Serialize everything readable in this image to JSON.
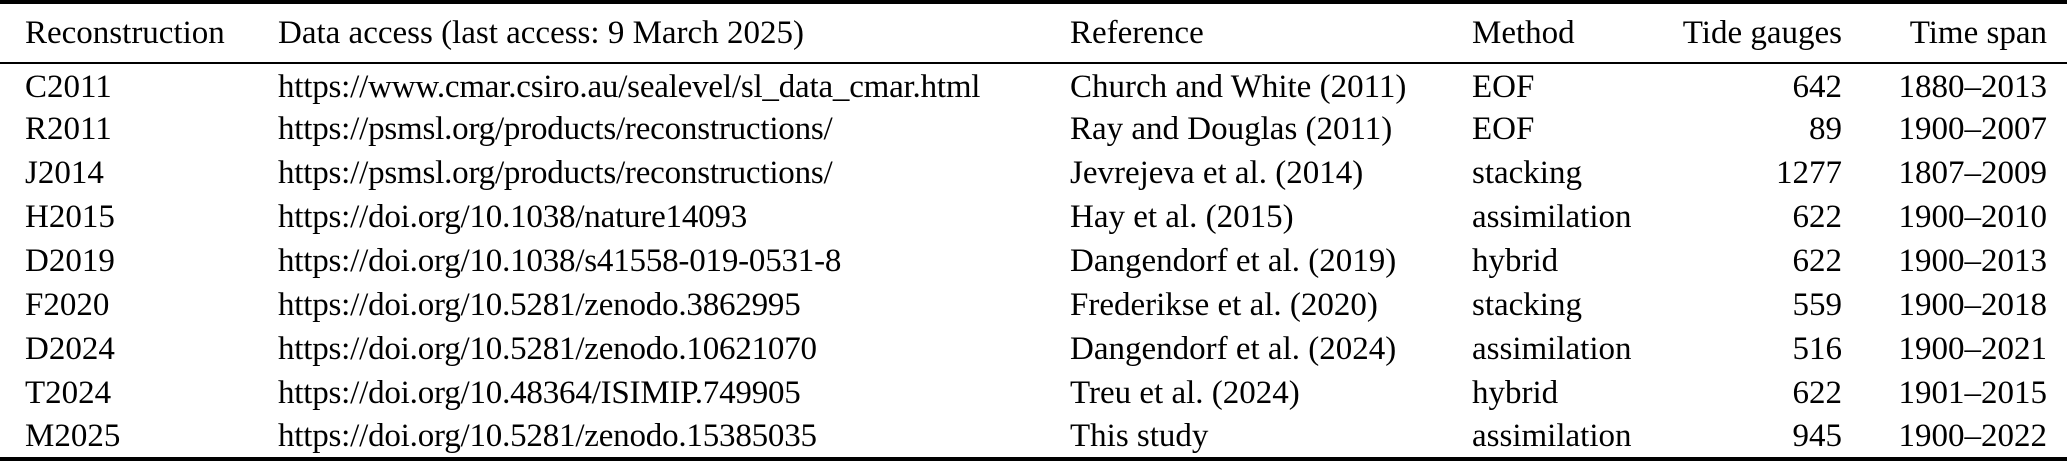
{
  "page": {
    "background_color": "#ffffff",
    "text_color": "#000000",
    "rule_color": "#000000"
  },
  "table": {
    "columns": [
      {
        "key": "reconstruction",
        "label": "Reconstruction",
        "align": "left"
      },
      {
        "key": "data_access",
        "label": "Data access (last access: 9 March 2025)",
        "align": "left"
      },
      {
        "key": "reference",
        "label": "Reference",
        "align": "left"
      },
      {
        "key": "method",
        "label": "Method",
        "align": "left"
      },
      {
        "key": "tide_gauges",
        "label": "Tide gauges",
        "align": "right"
      },
      {
        "key": "time_span",
        "label": "Time span",
        "align": "right"
      }
    ],
    "rows": [
      {
        "reconstruction": "C2011",
        "data_access": "https://www.cmar.csiro.au/sealevel/sl_data_cmar.html",
        "reference": "Church and White (2011)",
        "method": "EOF",
        "tide_gauges": "642",
        "time_span": "1880–2013"
      },
      {
        "reconstruction": "R2011",
        "data_access": "https://psmsl.org/products/reconstructions/",
        "reference": "Ray and Douglas (2011)",
        "method": "EOF",
        "tide_gauges": "89",
        "time_span": "1900–2007"
      },
      {
        "reconstruction": "J2014",
        "data_access": "https://psmsl.org/products/reconstructions/",
        "reference": "Jevrejeva et al. (2014)",
        "method": "stacking",
        "tide_gauges": "1277",
        "time_span": "1807–2009"
      },
      {
        "reconstruction": "H2015",
        "data_access": "https://doi.org/10.1038/nature14093",
        "reference": "Hay et al. (2015)",
        "method": "assimilation",
        "tide_gauges": "622",
        "time_span": "1900–2010"
      },
      {
        "reconstruction": "D2019",
        "data_access": "https://doi.org/10.1038/s41558-019-0531-8",
        "reference": "Dangendorf et al. (2019)",
        "method": "hybrid",
        "tide_gauges": "622",
        "time_span": "1900–2013"
      },
      {
        "reconstruction": "F2020",
        "data_access": "https://doi.org/10.5281/zenodo.3862995",
        "reference": "Frederikse et al. (2020)",
        "method": "stacking",
        "tide_gauges": "559",
        "time_span": "1900–2018"
      },
      {
        "reconstruction": "D2024",
        "data_access": "https://doi.org/10.5281/zenodo.10621070",
        "reference": "Dangendorf et al. (2024)",
        "method": "assimilation",
        "tide_gauges": "516",
        "time_span": "1900–2021"
      },
      {
        "reconstruction": "T2024",
        "data_access": "https://doi.org/10.48364/ISIMIP.749905",
        "reference": "Treu et al. (2024)",
        "method": "hybrid",
        "tide_gauges": "622",
        "time_span": "1901–2015"
      },
      {
        "reconstruction": "M2025",
        "data_access": "https://doi.org/10.5281/zenodo.15385035",
        "reference": "This study",
        "method": "assimilation",
        "tide_gauges": "945",
        "time_span": "1900–2022"
      }
    ]
  }
}
